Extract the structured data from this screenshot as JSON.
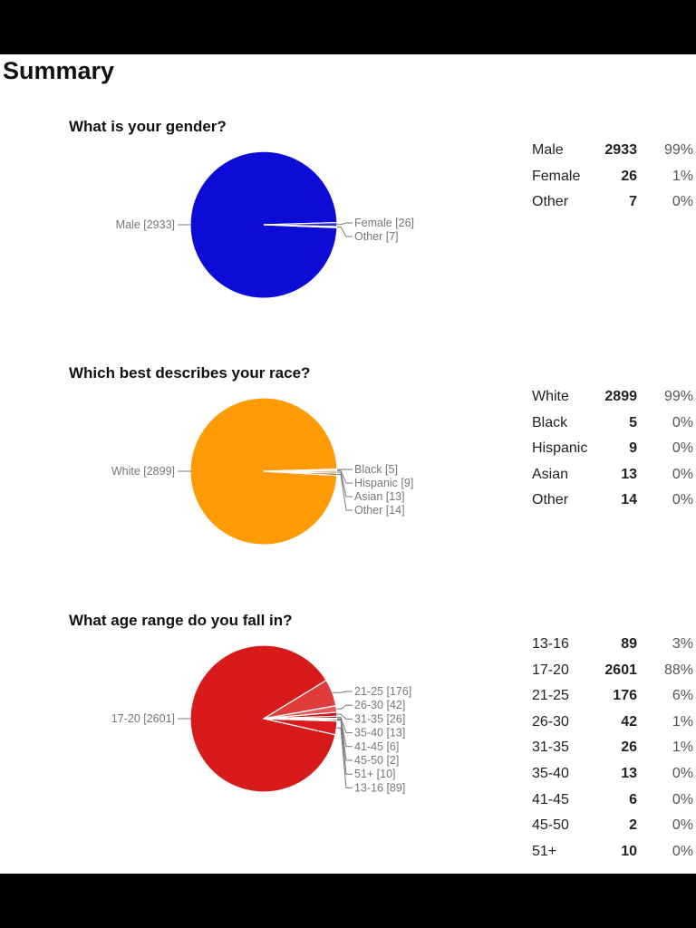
{
  "title": "Summary",
  "chart_data": [
    {
      "type": "pie",
      "title": "What is your gender?",
      "categories": [
        "Male",
        "Female",
        "Other"
      ],
      "values": [
        2933,
        26,
        7
      ],
      "percents": [
        "99%",
        "1%",
        "0%"
      ],
      "colors": [
        "#0c0cd6",
        "#2a2ae8",
        "#4848ff"
      ],
      "callout_labels": [
        "Male [2933]",
        "Female [26]",
        "Other [7]"
      ]
    },
    {
      "type": "pie",
      "title": "Which best describes your race?",
      "categories": [
        "White",
        "Black",
        "Hispanic",
        "Asian",
        "Other"
      ],
      "values": [
        2899,
        5,
        9,
        13,
        14
      ],
      "percents": [
        "99%",
        "0%",
        "0%",
        "0%",
        "0%"
      ],
      "colors": [
        "#fd9a04",
        "#5c5c5c",
        "#a05a00",
        "#b76a00",
        "#8a5000"
      ],
      "callout_labels": [
        "White [2899]",
        "Black [5]",
        "Hispanic [9]",
        "Asian [13]",
        "Other [14]"
      ]
    },
    {
      "type": "pie",
      "title": "What age range do you fall in?",
      "categories": [
        "13-16",
        "17-20",
        "21-25",
        "26-30",
        "31-35",
        "35-40",
        "41-45",
        "45-50",
        "51+"
      ],
      "values": [
        89,
        2601,
        176,
        42,
        26,
        13,
        6,
        2,
        10
      ],
      "percents": [
        "3%",
        "88%",
        "6%",
        "1%",
        "1%",
        "0%",
        "0%",
        "0%",
        "0%"
      ],
      "colors": [
        "#dc1c1c",
        "#d71b1b",
        "#e03c3c",
        "#e85a5a",
        "#c91515",
        "#b80d0d",
        "#a80808",
        "#980404",
        "#8a0000"
      ],
      "callout_order": [
        2,
        3,
        4,
        5,
        6,
        7,
        8,
        0
      ],
      "callout_labels": [
        "13-16 [89]",
        "17-20 [2601]",
        "21-25 [176]",
        "26-30 [42]",
        "31-35 [26]",
        "35-40 [13]",
        "41-45 [6]",
        "45-50 [2]",
        "51+ [10]"
      ]
    }
  ]
}
